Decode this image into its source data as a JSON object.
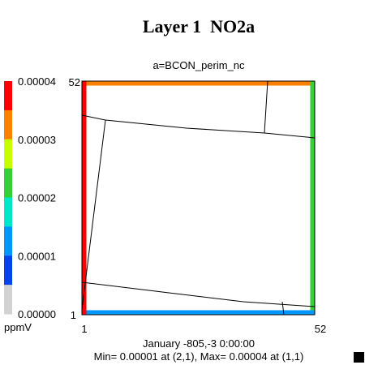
{
  "chart_data": {
    "type": "heatmap",
    "title": "Layer 1  NO2a",
    "subtitle": "a=BCON_perim_nc",
    "x_tick_labels": [
      "1",
      "52"
    ],
    "y_tick_labels": [
      "1",
      "52"
    ],
    "x_range": [
      1,
      52
    ],
    "y_range": [
      1,
      52
    ],
    "colorbar": {
      "unit": "ppmV",
      "labels": [
        "0.00004",
        "0.00003",
        "0.00002",
        "0.00001",
        "0.00000"
      ],
      "range": [
        0.0,
        4e-05
      ],
      "colors_top_to_bottom": [
        "#ff0000",
        "#ff8000",
        "#c8ff00",
        "#32d232",
        "#00e6c8",
        "#0096ff",
        "#0046e6",
        "#d2d2d2"
      ]
    },
    "perimeter_cells": [
      {
        "side": "north",
        "value": 3e-05,
        "color": "#ff8000"
      },
      {
        "side": "east",
        "value": 2e-05,
        "color": "#32d232"
      },
      {
        "side": "south",
        "value": 1e-05,
        "color": "#0096ff"
      },
      {
        "side": "west",
        "value": 4e-05,
        "color": "#ff0000"
      }
    ],
    "interior": "no data",
    "date_text": "January -805,-3 0:00:00",
    "stats_text": "Min= 0.00001 at (2,1), Max= 0.00004 at (1,1)"
  }
}
